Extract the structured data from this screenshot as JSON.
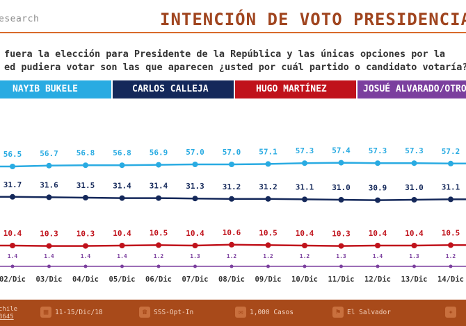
{
  "header": {
    "brand": "esearch",
    "title": "INTENCIÓN DE VOTO PRESIDENCIAL"
  },
  "question": {
    "line1": "fuera la elección para Presidente de la República y las únicas opciones por la",
    "line2": "ed pudiera votar son las que aparecen ¿usted por cuál partido o candidato votaría?"
  },
  "legend": [
    {
      "label": "NAYIB BUKELE",
      "color": "#29abe2"
    },
    {
      "label": "CARLOS CALLEJA",
      "color": "#14285a"
    },
    {
      "label": "HUGO MARTÍNEZ",
      "color": "#c0121b"
    },
    {
      "label": "JOSUÉ ALVARADO/OTROS",
      "color": "#7b3f9e"
    }
  ],
  "chart_data": {
    "type": "line",
    "categories": [
      "02/Dic",
      "03/Dic",
      "04/Dic",
      "05/Dic",
      "06/Dic",
      "07/Dic",
      "08/Dic",
      "09/Dic",
      "10/Dic",
      "11/Dic",
      "12/Dic",
      "13/Dic",
      "14/Dic"
    ],
    "series": [
      {
        "name": "NAYIB BUKELE",
        "color": "#29abe2",
        "values": [
          56.5,
          56.7,
          56.8,
          56.8,
          56.9,
          57.0,
          57.0,
          57.1,
          57.3,
          57.4,
          57.3,
          57.3,
          57.2
        ]
      },
      {
        "name": "CARLOS CALLEJA",
        "color": "#14285a",
        "values": [
          31.7,
          31.6,
          31.5,
          31.4,
          31.4,
          31.3,
          31.2,
          31.2,
          31.1,
          31.0,
          30.9,
          31.0,
          31.1
        ]
      },
      {
        "name": "HUGO MARTÍNEZ",
        "color": "#c0121b",
        "values": [
          10.4,
          10.3,
          10.3,
          10.4,
          10.5,
          10.4,
          10.6,
          10.5,
          10.4,
          10.3,
          10.4,
          10.4,
          10.5
        ]
      },
      {
        "name": "JOSUÉ ALVARADO/OTROS",
        "color": "#7b3f9e",
        "values": [
          1.4,
          1.4,
          1.4,
          1.4,
          1.2,
          1.3,
          1.2,
          1.2,
          1.2,
          1.3,
          1.4,
          1.3,
          1.2
        ]
      }
    ]
  },
  "footer": {
    "left_line1": "chile",
    "left_line2": "3645",
    "items": [
      {
        "icon": "calendar-icon",
        "text": "11-15/Dic/18"
      },
      {
        "icon": "phone-icon",
        "text": "SSS-Opt-In"
      },
      {
        "icon": "chat-icon",
        "text": "1,000 Casos"
      },
      {
        "icon": "location-icon",
        "text": "El Salvador"
      }
    ]
  }
}
